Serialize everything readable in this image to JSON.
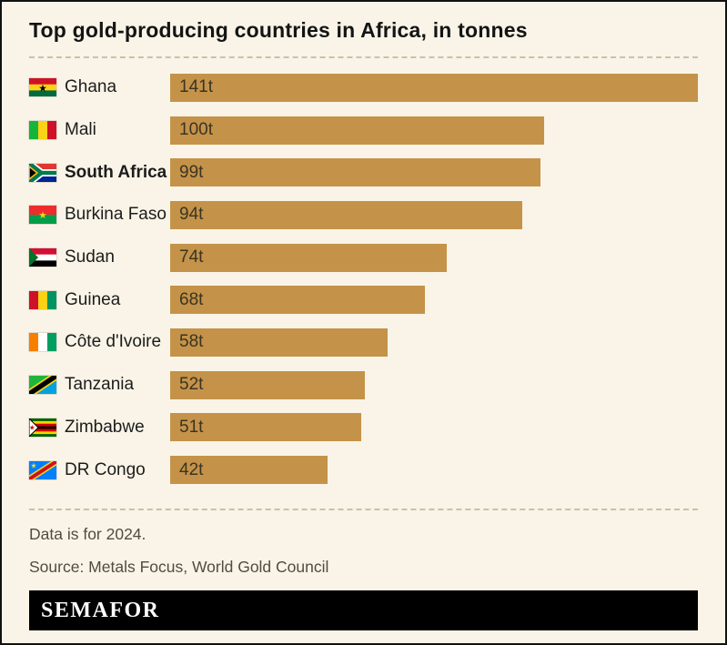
{
  "header": {
    "title": "Top gold-producing countries in Africa, in tonnes"
  },
  "chart_data": {
    "type": "bar",
    "orientation": "horizontal",
    "title": "Top gold-producing countries in Africa, in tonnes",
    "unit": "tonnes",
    "categories": [
      "Ghana",
      "Mali",
      "South Africa",
      "Burkina Faso",
      "Sudan",
      "Guinea",
      "Côte d'Ivoire",
      "Tanzania",
      "Zimbabwe",
      "DR Congo"
    ],
    "values": [
      141,
      100,
      99,
      94,
      74,
      68,
      58,
      52,
      51,
      42
    ],
    "value_labels": [
      "141t",
      "100t",
      "99t",
      "94t",
      "74t",
      "68t",
      "58t",
      "52t",
      "51t",
      "42t"
    ],
    "highlighted_category": "South Africa",
    "xlim": [
      0,
      141
    ],
    "bar_color": "#c49349",
    "value_label_position": "inside-left",
    "grid": false,
    "legend": false
  },
  "rows": [
    {
      "country": "Ghana",
      "value": 141,
      "label": "141t",
      "flag_icon": "ghana-flag-icon"
    },
    {
      "country": "Mali",
      "value": 100,
      "label": "100t",
      "flag_icon": "mali-flag-icon"
    },
    {
      "country": "South Africa",
      "value": 99,
      "label": "99t",
      "flag_icon": "south-africa-flag-icon"
    },
    {
      "country": "Burkina Faso",
      "value": 94,
      "label": "94t",
      "flag_icon": "burkina-faso-flag-icon"
    },
    {
      "country": "Sudan",
      "value": 74,
      "label": "74t",
      "flag_icon": "sudan-flag-icon"
    },
    {
      "country": "Guinea",
      "value": 68,
      "label": "68t",
      "flag_icon": "guinea-flag-icon"
    },
    {
      "country": "Côte d'Ivoire",
      "value": 58,
      "label": "58t",
      "flag_icon": "cote-divoire-flag-icon"
    },
    {
      "country": "Tanzania",
      "value": 52,
      "label": "52t",
      "flag_icon": "tanzania-flag-icon"
    },
    {
      "country": "Zimbabwe",
      "value": 51,
      "label": "51t",
      "flag_icon": "zimbabwe-flag-icon"
    },
    {
      "country": "DR Congo",
      "value": 42,
      "label": "42t",
      "flag_icon": "dr-congo-flag-icon"
    }
  ],
  "footer": {
    "note": "Data is for 2024.",
    "source": "Source: Metals Focus, World Gold Council"
  },
  "brand": {
    "wordmark": "SEMAFOR"
  },
  "colors": {
    "background": "#f9f4e7",
    "bar": "#c49349",
    "border": "#111111",
    "title_text": "#141414",
    "value_text": "#3b3322",
    "footer_text": "#514c43",
    "logo_background": "#000000",
    "logo_text": "#ffffff"
  }
}
